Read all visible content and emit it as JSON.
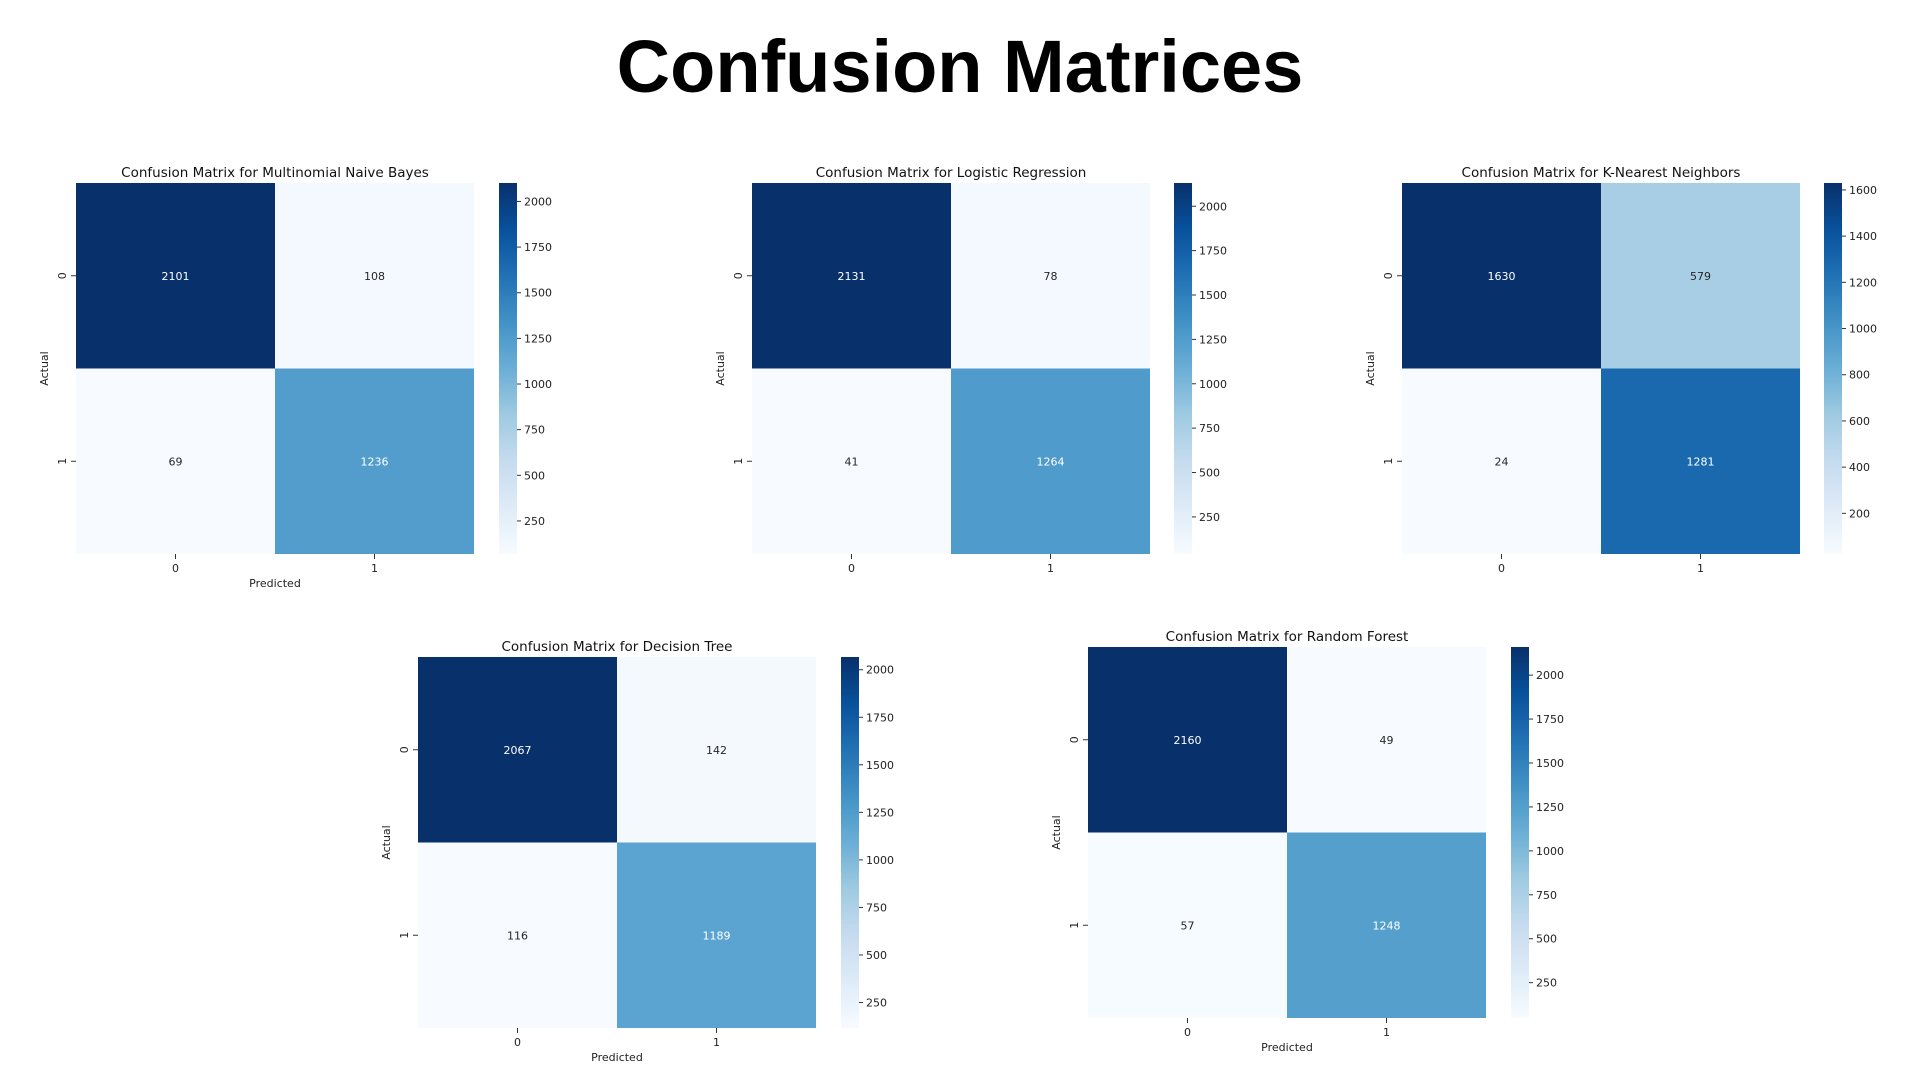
{
  "page": {
    "title": "Confusion Matrices"
  },
  "colormap": {
    "name": "Blues",
    "stops": [
      "#f7fbff",
      "#deebf7",
      "#c6dbef",
      "#9ecae1",
      "#6baed6",
      "#4292c6",
      "#2171b5",
      "#08519c",
      "#08306b"
    ]
  },
  "chart_data": [
    {
      "type": "heatmap",
      "title": "Confusion Matrix for Multinomial Naive Bayes",
      "xlabel": "Predicted",
      "ylabel": "Actual",
      "x_ticks": [
        "0",
        "1"
      ],
      "y_ticks": [
        "0",
        "1"
      ],
      "values": [
        [
          2101,
          108
        ],
        [
          69,
          1236
        ]
      ],
      "colorbar_ticks": [
        250,
        500,
        750,
        1000,
        1250,
        1500,
        1750,
        2000
      ],
      "vmin": 69,
      "vmax": 2101
    },
    {
      "type": "heatmap",
      "title": "Confusion Matrix for Logistic Regression",
      "xlabel": "",
      "ylabel": "Actual",
      "x_ticks": [
        "0",
        "1"
      ],
      "y_ticks": [
        "0",
        "1"
      ],
      "values": [
        [
          2131,
          78
        ],
        [
          41,
          1264
        ]
      ],
      "colorbar_ticks": [
        250,
        500,
        750,
        1000,
        1250,
        1500,
        1750,
        2000
      ],
      "vmin": 41,
      "vmax": 2131
    },
    {
      "type": "heatmap",
      "title": "Confusion Matrix for K-Nearest Neighbors",
      "xlabel": "",
      "ylabel": "Actual",
      "x_ticks": [
        "0",
        "1"
      ],
      "y_ticks": [
        "0",
        "1"
      ],
      "values": [
        [
          1630,
          579
        ],
        [
          24,
          1281
        ]
      ],
      "colorbar_ticks": [
        200,
        400,
        600,
        800,
        1000,
        1200,
        1400,
        1600
      ],
      "vmin": 24,
      "vmax": 1630
    },
    {
      "type": "heatmap",
      "title": "Confusion Matrix for Decision Tree",
      "xlabel": "Predicted",
      "ylabel": "Actual",
      "x_ticks": [
        "0",
        "1"
      ],
      "y_ticks": [
        "0",
        "1"
      ],
      "values": [
        [
          2067,
          142
        ],
        [
          116,
          1189
        ]
      ],
      "colorbar_ticks": [
        250,
        500,
        750,
        1000,
        1250,
        1500,
        1750,
        2000
      ],
      "vmin": 116,
      "vmax": 2067
    },
    {
      "type": "heatmap",
      "title": "Confusion Matrix for Random Forest",
      "xlabel": "Predicted",
      "ylabel": "Actual",
      "x_ticks": [
        "0",
        "1"
      ],
      "y_ticks": [
        "0",
        "1"
      ],
      "values": [
        [
          2160,
          49
        ],
        [
          57,
          1248
        ]
      ],
      "colorbar_ticks": [
        250,
        500,
        750,
        1000,
        1250,
        1500,
        1750,
        2000
      ],
      "vmin": 49,
      "vmax": 2160
    }
  ]
}
